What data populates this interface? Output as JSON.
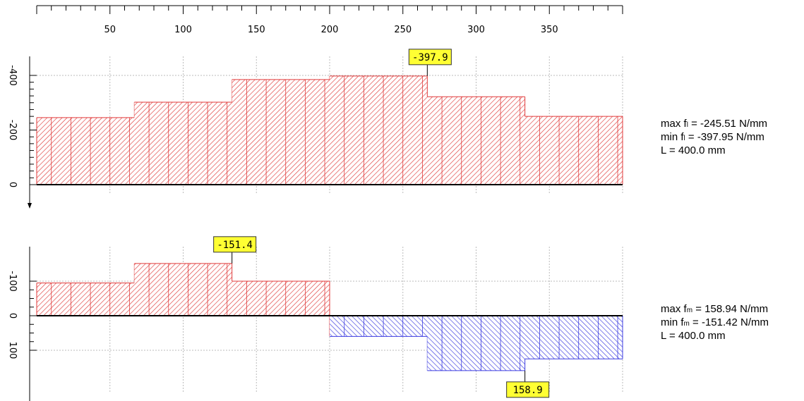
{
  "colors": {
    "positive_fill": "#e03a3a",
    "negative_fill": "#3a3ae0",
    "axis": "#000000",
    "grid": "#bbbbbb",
    "label_box": "#ffff33"
  },
  "chart_data": {
    "type": "area",
    "x_axis": {
      "range": [
        0,
        400
      ],
      "unit": "mm",
      "tick_labels": [
        50,
        100,
        150,
        200,
        250,
        300,
        350
      ]
    },
    "panels": [
      {
        "id": "f_l",
        "grid": true,
        "y_range": [
          0,
          -460
        ],
        "y_tick_labels": [
          "-400",
          "-200",
          "0"
        ],
        "segments": [
          {
            "x0": 0,
            "x1": 66.67,
            "y": -245.5
          },
          {
            "x0": 66.67,
            "x1": 133.33,
            "y": -302.0
          },
          {
            "x0": 133.33,
            "x1": 200,
            "y": -385.0
          },
          {
            "x0": 200,
            "x1": 266.67,
            "y": -397.9
          },
          {
            "x0": 266.67,
            "x1": 333.33,
            "y": -322.0
          },
          {
            "x0": 333.33,
            "x1": 400,
            "y": -250.0
          }
        ],
        "callout": {
          "text": "-397.9",
          "x": 266.67,
          "y": -397.9
        },
        "info": {
          "max_name": "max f",
          "max_sub": "l",
          "max_value": "= -245.51 N/mm",
          "min_name": "min f",
          "min_sub": "l",
          "min_value": "= -397.95 N/mm",
          "length": "L = 400.0 mm"
        }
      },
      {
        "id": "f_m",
        "grid": true,
        "y_range": [
          -160,
          175
        ],
        "y_tick_labels": [
          "-100",
          "0",
          "100"
        ],
        "segments": [
          {
            "x0": 0,
            "x1": 66.67,
            "y": -95.0
          },
          {
            "x0": 66.67,
            "x1": 133.33,
            "y": -151.4
          },
          {
            "x0": 133.33,
            "x1": 200,
            "y": -100.0
          },
          {
            "x0": 200,
            "x1": 266.67,
            "y": 60.0
          },
          {
            "x0": 266.67,
            "x1": 333.33,
            "y": 158.9
          },
          {
            "x0": 333.33,
            "x1": 400,
            "y": 125.0
          }
        ],
        "callouts": [
          {
            "text": "-151.4",
            "x": 133.33,
            "y": -151.4
          },
          {
            "text": "158.9",
            "x": 333.33,
            "y": 158.9
          }
        ],
        "info": {
          "max_name": "max f",
          "max_sub": "m",
          "max_value": "= 158.94 N/mm",
          "min_name": "min f",
          "min_sub": "m",
          "min_value": "= -151.42 N/mm",
          "length": "L = 400.0 mm"
        }
      }
    ]
  }
}
